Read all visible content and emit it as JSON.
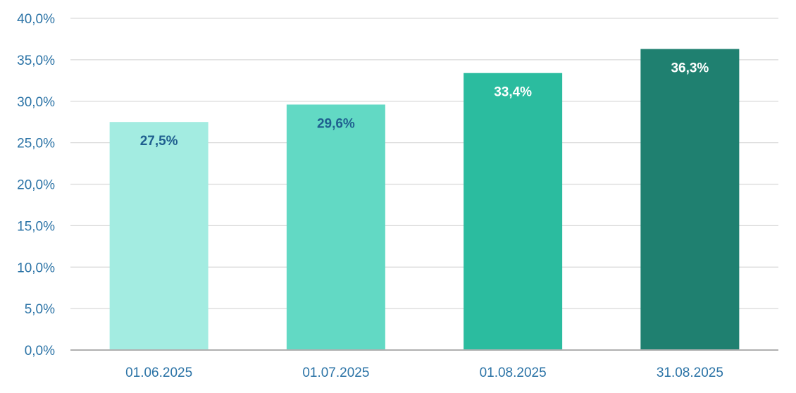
{
  "chart_data": {
    "type": "bar",
    "categories": [
      "01.06.2025",
      "01.07.2025",
      "01.08.2025",
      "31.08.2025"
    ],
    "values": [
      27.5,
      29.6,
      33.4,
      36.3
    ],
    "data_labels": [
      "27,5%",
      "29,6%",
      "33,4%",
      "36,3%"
    ],
    "bar_colors": [
      "#a3ece1",
      "#62d9c4",
      "#2bbc9f",
      "#1f8070"
    ],
    "label_colors": [
      "#1f5f8f",
      "#1f5f8f",
      "#ffffff",
      "#ffffff"
    ],
    "ylim": [
      0,
      40
    ],
    "yticks": [
      0,
      5,
      10,
      15,
      20,
      25,
      30,
      35,
      40
    ],
    "ytick_labels": [
      "0,0%",
      "5,0%",
      "10,0%",
      "15,0%",
      "20,0%",
      "25,0%",
      "30,0%",
      "35,0%",
      "40,0%"
    ],
    "grid": true,
    "legend": "none",
    "title": "",
    "xlabel": "",
    "ylabel": "",
    "axis_color": "#2b73a6",
    "grid_color": "#d9d9d9",
    "baseline_color": "#b0b0b0"
  }
}
